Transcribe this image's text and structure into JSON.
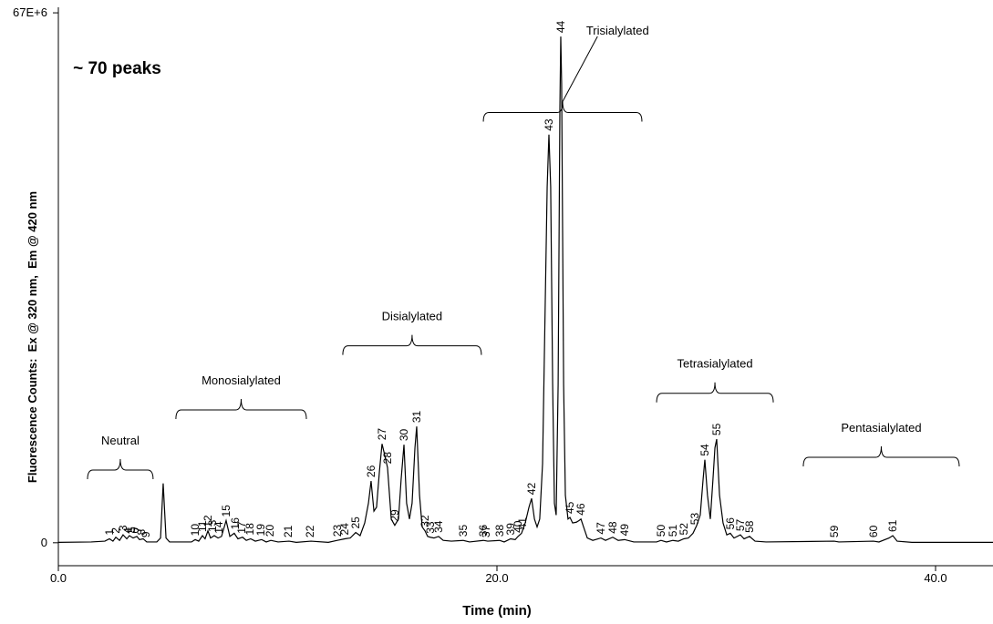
{
  "chart_data": {
    "type": "line",
    "color": "#000000",
    "xlabel": "Time (min)",
    "ylabel": "Fluorescence Counts:  Ex @ 320 nm,  Em @ 420 nm",
    "xlim": [
      0,
      42.62
    ],
    "ylim": [
      -2900000.0,
      67700000.0
    ],
    "xticks": [
      {
        "value": 0,
        "label": "0.0"
      },
      {
        "value": 20,
        "label": "20.0"
      },
      {
        "value": 40,
        "label": "40.0"
      }
    ],
    "yticks": [
      0,
      {
        "value": 67000000,
        "label": "67E+6"
      }
    ],
    "x": [
      0,
      1.5,
      2.12,
      2.33,
      2.49,
      2.62,
      2.79,
      2.95,
      3.12,
      3.24,
      3.41,
      3.58,
      3.7,
      3.87,
      4.03,
      4.49,
      4.66,
      4.78,
      4.91,
      5.07,
      6.07,
      6.24,
      6.4,
      6.57,
      6.69,
      6.82,
      6.94,
      7.11,
      7.28,
      7.44,
      7.65,
      7.82,
      8.02,
      8.19,
      8.4,
      8.57,
      8.77,
      8.98,
      9.27,
      9.48,
      9.69,
      10.02,
      10.52,
      10.85,
      11.52,
      12.31,
      12.72,
      13.06,
      13.31,
      13.56,
      13.76,
      13.97,
      14.14,
      14.26,
      14.39,
      14.51,
      14.64,
      14.76,
      14.89,
      15.01,
      15.18,
      15.34,
      15.51,
      15.63,
      15.76,
      15.88,
      16.01,
      16.13,
      16.26,
      16.34,
      16.47,
      16.59,
      16.72,
      16.84,
      16.96,
      17.13,
      17.34,
      17.55,
      17.92,
      18.46,
      18.75,
      19.38,
      19.58,
      20.12,
      20.33,
      20.62,
      20.83,
      20.96,
      21.12,
      21.29,
      21.46,
      21.58,
      21.71,
      21.83,
      21.95,
      22.08,
      22.2,
      22.29,
      22.37,
      22.45,
      22.54,
      22.62,
      22.7,
      22.79,
      22.87,
      22.91,
      22.95,
      23.04,
      23.12,
      23.24,
      23.33,
      23.45,
      23.62,
      23.74,
      23.83,
      23.95,
      24.12,
      24.37,
      24.74,
      24.95,
      25.28,
      25.53,
      25.82,
      26.24,
      27.28,
      27.48,
      27.73,
      28.02,
      28.27,
      28.52,
      28.73,
      28.94,
      29.11,
      29.27,
      29.4,
      29.48,
      29.6,
      29.73,
      29.85,
      29.94,
      30.02,
      30.15,
      30.31,
      30.48,
      30.64,
      30.81,
      31.1,
      31.27,
      31.52,
      31.77,
      32.27,
      35.38,
      35.59,
      37.17,
      37.42,
      37.88,
      38.05,
      38.25,
      38.92,
      42.62
    ],
    "values": [
      50000.0,
      100000.0,
      200000.0,
      500000.0,
      200000.0,
      700000.0,
      300000.0,
      1000000.0,
      500000.0,
      900000.0,
      600000.0,
      800000.0,
      400000.0,
      500000.0,
      100000.0,
      100000.0,
      600000.0,
      7500000.0,
      600000.0,
      100000.0,
      100000.0,
      400000.0,
      200000.0,
      900000.0,
      500000.0,
      1500000.0,
      600000.0,
      900000.0,
      600000.0,
      800000.0,
      2800000.0,
      800000.0,
      1200000.0,
      500000.0,
      700000.0,
      300000.0,
      500000.0,
      200000.0,
      400000.0,
      100000.0,
      300000.0,
      100000.0,
      200000.0,
      50000.0,
      200000.0,
      50000.0,
      300000.0,
      500000.0,
      600000.0,
      1300000.0,
      900000.0,
      2500000.0,
      5000000.0,
      7800000.0,
      4000000.0,
      4500000.0,
      9000000.0,
      12500000.0,
      11000000.0,
      9500000.0,
      3000000.0,
      2200000.0,
      3000000.0,
      8000000.0,
      12400000.0,
      5000000.0,
      3000000.0,
      5000000.0,
      12000000.0,
      14700000.0,
      6000000.0,
      2000000.0,
      1500000.0,
      800000.0,
      700000.0,
      600000.0,
      800000.0,
      300000.0,
      200000.0,
      300000.0,
      100000.0,
      300000.0,
      200000.0,
      300000.0,
      100000.0,
      500000.0,
      400000.0,
      800000.0,
      1200000.0,
      2500000.0,
      4500000.0,
      5600000.0,
      3000000.0,
      2000000.0,
      3000000.0,
      10000000.0,
      30000000.0,
      45000000.0,
      51600000.0,
      45000000.0,
      20000000.0,
      5000000.0,
      3500000.0,
      20000000.0,
      55000000.0,
      64000000.0,
      58000000.0,
      20000000.0,
      6000000.0,
      3000000.0,
      3200000.0,
      2500000.0,
      2600000.0,
      2800000.0,
      3000000.0,
      2000000.0,
      600000.0,
      300000.0,
      600000.0,
      300000.0,
      700000.0,
      300000.0,
      400000.0,
      100000.0,
      100000.0,
      300000.0,
      100000.0,
      300000.0,
      200000.0,
      500000.0,
      600000.0,
      1200000.0,
      2200000.0,
      3500000.0,
      8000000.0,
      10500000.0,
      6000000.0,
      3000000.0,
      8000000.0,
      12000000.0,
      13100000.0,
      6000000.0,
      2500000.0,
      1000000.0,
      1200000.0,
      600000.0,
      1000000.0,
      500000.0,
      800000.0,
      200000.0,
      100000.0,
      200000.0,
      100000.0,
      200000.0,
      100000.0,
      600000.0,
      900000.0,
      200000.0,
      50000.0,
      50000.0
    ],
    "peaks": [
      {
        "label": "1",
        "time": 2.33,
        "height": 500000.0
      },
      {
        "label": "2",
        "time": 2.62,
        "height": 700000.0
      },
      {
        "label": "3",
        "time": 2.95,
        "height": 1000000.0
      },
      {
        "label": "4",
        "time": 3.16,
        "height": 700000.0
      },
      {
        "label": "5",
        "time": 3.33,
        "height": 800000.0
      },
      {
        "label": "6",
        "time": 3.49,
        "height": 700000.0
      },
      {
        "label": "7",
        "time": 3.62,
        "height": 800000.0
      },
      {
        "label": "8",
        "time": 3.78,
        "height": 500000.0
      },
      {
        "label": "9",
        "time": 3.99,
        "height": 200000.0
      },
      {
        "label": "10",
        "time": 6.24,
        "height": 400000.0
      },
      {
        "label": "11",
        "time": 6.57,
        "height": 900000.0
      },
      {
        "label": "12",
        "time": 6.82,
        "height": 1500000.0
      },
      {
        "label": "13",
        "time": 7.03,
        "height": 900000.0
      },
      {
        "label": "14",
        "time": 7.32,
        "height": 700000.0
      },
      {
        "label": "15",
        "time": 7.65,
        "height": 2800000.0
      },
      {
        "label": "16",
        "time": 8.07,
        "height": 1200000.0
      },
      {
        "label": "17",
        "time": 8.36,
        "height": 700000.0
      },
      {
        "label": "18",
        "time": 8.73,
        "height": 500000.0
      },
      {
        "label": "19",
        "time": 9.23,
        "height": 400000.0
      },
      {
        "label": "20",
        "time": 9.65,
        "height": 300000.0
      },
      {
        "label": "21",
        "time": 10.48,
        "height": 200000.0
      },
      {
        "label": "22",
        "time": 11.48,
        "height": 200000.0
      },
      {
        "label": "23",
        "time": 12.72,
        "height": 300000.0
      },
      {
        "label": "24",
        "time": 13.06,
        "height": 500000.0
      },
      {
        "label": "25",
        "time": 13.56,
        "height": 1300000.0
      },
      {
        "label": "26",
        "time": 14.26,
        "height": 7800000.0
      },
      {
        "label": "27",
        "time": 14.76,
        "height": 12500000.0
      },
      {
        "label": "28",
        "time": 15.01,
        "height": 9500000.0
      },
      {
        "label": "29",
        "time": 15.34,
        "height": 2200000.0
      },
      {
        "label": "30",
        "time": 15.76,
        "height": 12400000.0
      },
      {
        "label": "31",
        "time": 16.34,
        "height": 14700000.0
      },
      {
        "label": "32",
        "time": 16.72,
        "height": 1500000.0
      },
      {
        "label": "33",
        "time": 16.96,
        "height": 700000.0
      },
      {
        "label": "34",
        "time": 17.34,
        "height": 800000.0
      },
      {
        "label": "35",
        "time": 18.46,
        "height": 300000.0
      },
      {
        "label": "36",
        "time": 19.38,
        "height": 300000.0
      },
      {
        "label": "37",
        "time": 19.5,
        "height": 200000.0
      },
      {
        "label": "38",
        "time": 20.12,
        "height": 300000.0
      },
      {
        "label": "39",
        "time": 20.62,
        "height": 500000.0
      },
      {
        "label": "40",
        "time": 20.96,
        "height": 800000.0
      },
      {
        "label": "41",
        "time": 21.17,
        "height": 1200000.0
      },
      {
        "label": "42",
        "time": 21.58,
        "height": 5600000.0
      },
      {
        "label": "43",
        "time": 22.37,
        "height": 51600000.0
      },
      {
        "label": "44",
        "time": 22.91,
        "height": 64000000.0
      },
      {
        "label": "45",
        "time": 23.33,
        "height": 3200000.0
      },
      {
        "label": "46",
        "time": 23.83,
        "height": 3000000.0
      },
      {
        "label": "47",
        "time": 24.74,
        "height": 600000.0
      },
      {
        "label": "48",
        "time": 25.28,
        "height": 700000.0
      },
      {
        "label": "49",
        "time": 25.82,
        "height": 400000.0
      },
      {
        "label": "50",
        "time": 27.48,
        "height": 300000.0
      },
      {
        "label": "51",
        "time": 28.02,
        "height": 300000.0
      },
      {
        "label": "52",
        "time": 28.52,
        "height": 500000.0
      },
      {
        "label": "53",
        "time": 29.02,
        "height": 1800000.0
      },
      {
        "label": "54",
        "time": 29.48,
        "height": 10500000.0
      },
      {
        "label": "55",
        "time": 30.02,
        "height": 13100000.0
      },
      {
        "label": "56",
        "time": 30.64,
        "height": 1200000.0
      },
      {
        "label": "57",
        "time": 31.1,
        "height": 1000000.0
      },
      {
        "label": "58",
        "time": 31.52,
        "height": 800000.0
      },
      {
        "label": "59",
        "time": 35.38,
        "height": 200000.0
      },
      {
        "label": "60",
        "time": 37.17,
        "height": 200000.0
      },
      {
        "label": "61",
        "time": 38.05,
        "height": 900000.0
      }
    ],
    "groups": [
      {
        "text": "Neutral",
        "x_range": [
          1.33,
          4.32
        ],
        "y": 9200000.0
      },
      {
        "text": "Monosialylated",
        "x_range": [
          5.36,
          11.31
        ],
        "y": 16800000.0
      },
      {
        "text": "Disialylated",
        "x_range": [
          12.97,
          19.29
        ],
        "y": 24900000.0
      },
      {
        "text": "Trisialylated",
        "x_range": [
          19.38,
          26.61
        ],
        "y": 54400000.0,
        "text_x": 25.5,
        "text_y": 64700000.0
      },
      {
        "text": "Tetrasialylated",
        "x_range": [
          27.28,
          32.6
        ],
        "y": 18900000.0
      },
      {
        "text": "Pentasialylated",
        "x_range": [
          33.97,
          41.08
        ],
        "y": 10800000.0
      }
    ],
    "annotation": {
      "text": "~ 70 peaks",
      "x": 0.67,
      "y": 60000000.0
    }
  }
}
